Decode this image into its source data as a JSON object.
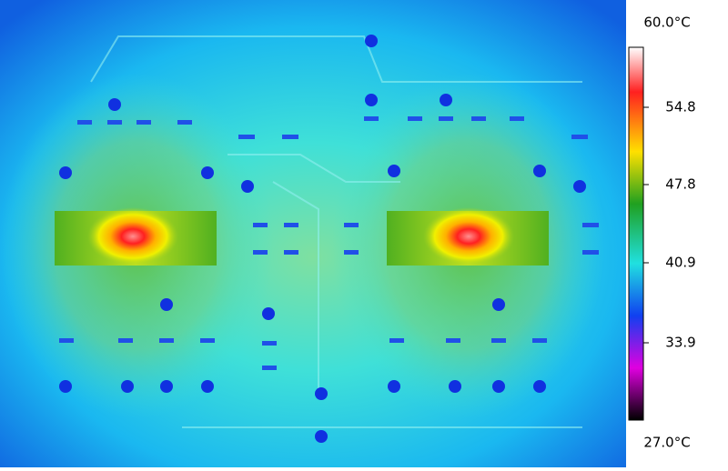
{
  "scale": {
    "max": "60.0°C",
    "ticks": [
      "54.8",
      "47.8",
      "40.9",
      "33.9"
    ],
    "min": "27.0°C"
  }
}
